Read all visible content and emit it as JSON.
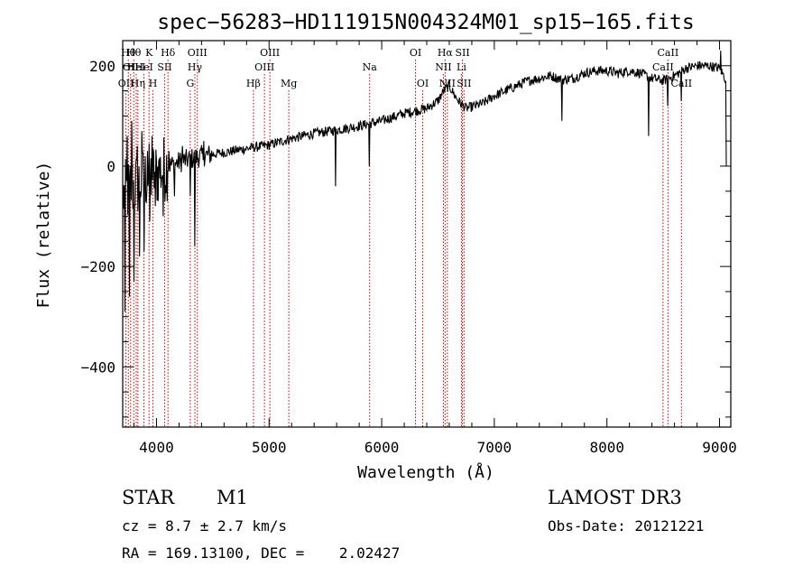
{
  "chart_data": {
    "type": "line",
    "title": "spec−56283−HD111915N004324M01_sp15−165.fits",
    "xlabel": "Wavelength (Å)",
    "ylabel": "Flux (relative)",
    "xlim": [
      3700,
      9100
    ],
    "ylim": [
      -520,
      250
    ],
    "x_ticks": [
      4000,
      5000,
      6000,
      7000,
      8000,
      9000
    ],
    "y_ticks": [
      -400,
      -200,
      0,
      200
    ],
    "y_tick_labels": [
      "−400",
      "−200",
      "0",
      "200"
    ],
    "continuum_x": [
      3700,
      3800,
      3900,
      4000,
      4100,
      4200,
      4300,
      4400,
      4600,
      4800,
      5000,
      5200,
      5400,
      5600,
      5800,
      6000,
      6200,
      6400,
      6500,
      6550,
      6600,
      6650,
      6700,
      6750,
      6800,
      6900,
      7000,
      7100,
      7200,
      7300,
      7400,
      7500,
      7600,
      7700,
      7800,
      7900,
      8000,
      8100,
      8200,
      8300,
      8400,
      8500,
      8600,
      8700,
      8800,
      8900,
      9000,
      9050
    ],
    "continuum_y": [
      -60,
      -40,
      -25,
      -15,
      0,
      8,
      14,
      20,
      27,
      35,
      42,
      55,
      65,
      72,
      80,
      90,
      105,
      115,
      130,
      150,
      160,
      140,
      125,
      115,
      118,
      125,
      140,
      150,
      160,
      170,
      175,
      180,
      172,
      175,
      185,
      190,
      190,
      185,
      190,
      185,
      175,
      170,
      180,
      195,
      200,
      200,
      195,
      175
    ],
    "spikes": [
      {
        "x": 3720,
        "y": -290
      },
      {
        "x": 3740,
        "y": 60
      },
      {
        "x": 3760,
        "y": -260
      },
      {
        "x": 3780,
        "y": 90
      },
      {
        "x": 3800,
        "y": -230
      },
      {
        "x": 3830,
        "y": 40
      },
      {
        "x": 3850,
        "y": -180
      },
      {
        "x": 3870,
        "y": 70
      },
      {
        "x": 3890,
        "y": -170
      },
      {
        "x": 3920,
        "y": 30
      },
      {
        "x": 3940,
        "y": -110
      },
      {
        "x": 3960,
        "y": 60
      },
      {
        "x": 3990,
        "y": -80
      },
      {
        "x": 4020,
        "y": 10
      },
      {
        "x": 4060,
        "y": -100
      },
      {
        "x": 4110,
        "y": 30
      },
      {
        "x": 4160,
        "y": -60
      },
      {
        "x": 4230,
        "y": 40
      },
      {
        "x": 4300,
        "y": -60
      },
      {
        "x": 4340,
        "y": -160
      },
      {
        "x": 4420,
        "y": 50
      },
      {
        "x": 5590,
        "y": -40
      },
      {
        "x": 5890,
        "y": 0
      },
      {
        "x": 7600,
        "y": 90
      },
      {
        "x": 8370,
        "y": 60
      },
      {
        "x": 8540,
        "y": 120
      },
      {
        "x": 8660,
        "y": 130
      },
      {
        "x": 9010,
        "y": 230
      },
      {
        "x": 9060,
        "y": 0
      }
    ],
    "line_markers": [
      {
        "x": 3729,
        "label": "OII",
        "row": 3
      },
      {
        "x": 3750,
        "label": "Hθ",
        "row": 1
      },
      {
        "x": 3770,
        "label": "OII",
        "row": 2
      },
      {
        "x": 3798,
        "label": "Hθ",
        "row": 1
      },
      {
        "x": 3820,
        "label": "HeI",
        "row": 2
      },
      {
        "x": 3835,
        "label": "Hη",
        "row": 3
      },
      {
        "x": 3889,
        "label": "HeI",
        "row": 2
      },
      {
        "x": 3934,
        "label": "K",
        "row": 1
      },
      {
        "x": 3969,
        "label": "H",
        "row": 3
      },
      {
        "x": 4072,
        "label": "SII",
        "row": 2
      },
      {
        "x": 4102,
        "label": "Hδ",
        "row": 1
      },
      {
        "x": 4300,
        "label": "G",
        "row": 3
      },
      {
        "x": 4341,
        "label": "Hγ",
        "row": 2
      },
      {
        "x": 4363,
        "label": "OIII",
        "row": 1
      },
      {
        "x": 4861,
        "label": "Hβ",
        "row": 3
      },
      {
        "x": 4959,
        "label": "OIII",
        "row": 2
      },
      {
        "x": 5007,
        "label": "OIII",
        "row": 1
      },
      {
        "x": 5175,
        "label": "Mg",
        "row": 3
      },
      {
        "x": 5893,
        "label": "Na",
        "row": 2
      },
      {
        "x": 6300,
        "label": "OI",
        "row": 1
      },
      {
        "x": 6364,
        "label": "OI",
        "row": 3
      },
      {
        "x": 6548,
        "label": "NII",
        "row": 2
      },
      {
        "x": 6563,
        "label": "Hα",
        "row": 1
      },
      {
        "x": 6583,
        "label": "NII",
        "row": 3
      },
      {
        "x": 6708,
        "label": "Li",
        "row": 2
      },
      {
        "x": 6717,
        "label": "SII",
        "row": 1
      },
      {
        "x": 6731,
        "label": "SII",
        "row": 3
      },
      {
        "x": 8498,
        "label": "CaII",
        "row": 2
      },
      {
        "x": 8542,
        "label": "CaII",
        "row": 1
      },
      {
        "x": 8662,
        "label": "CaII",
        "row": 3
      }
    ]
  },
  "info": {
    "class": "STAR",
    "subclass": "M1",
    "survey": "LAMOST DR3",
    "cz": "cz = 8.7 ± 2.7 km/s",
    "obs_date": "Obs-Date: 20121221",
    "coords": "RA = 169.13100, DEC =    2.02427"
  },
  "colors": {
    "axis": "#000000",
    "spectrum": "#000000",
    "marker": "#c00000",
    "background": "#ffffff"
  }
}
